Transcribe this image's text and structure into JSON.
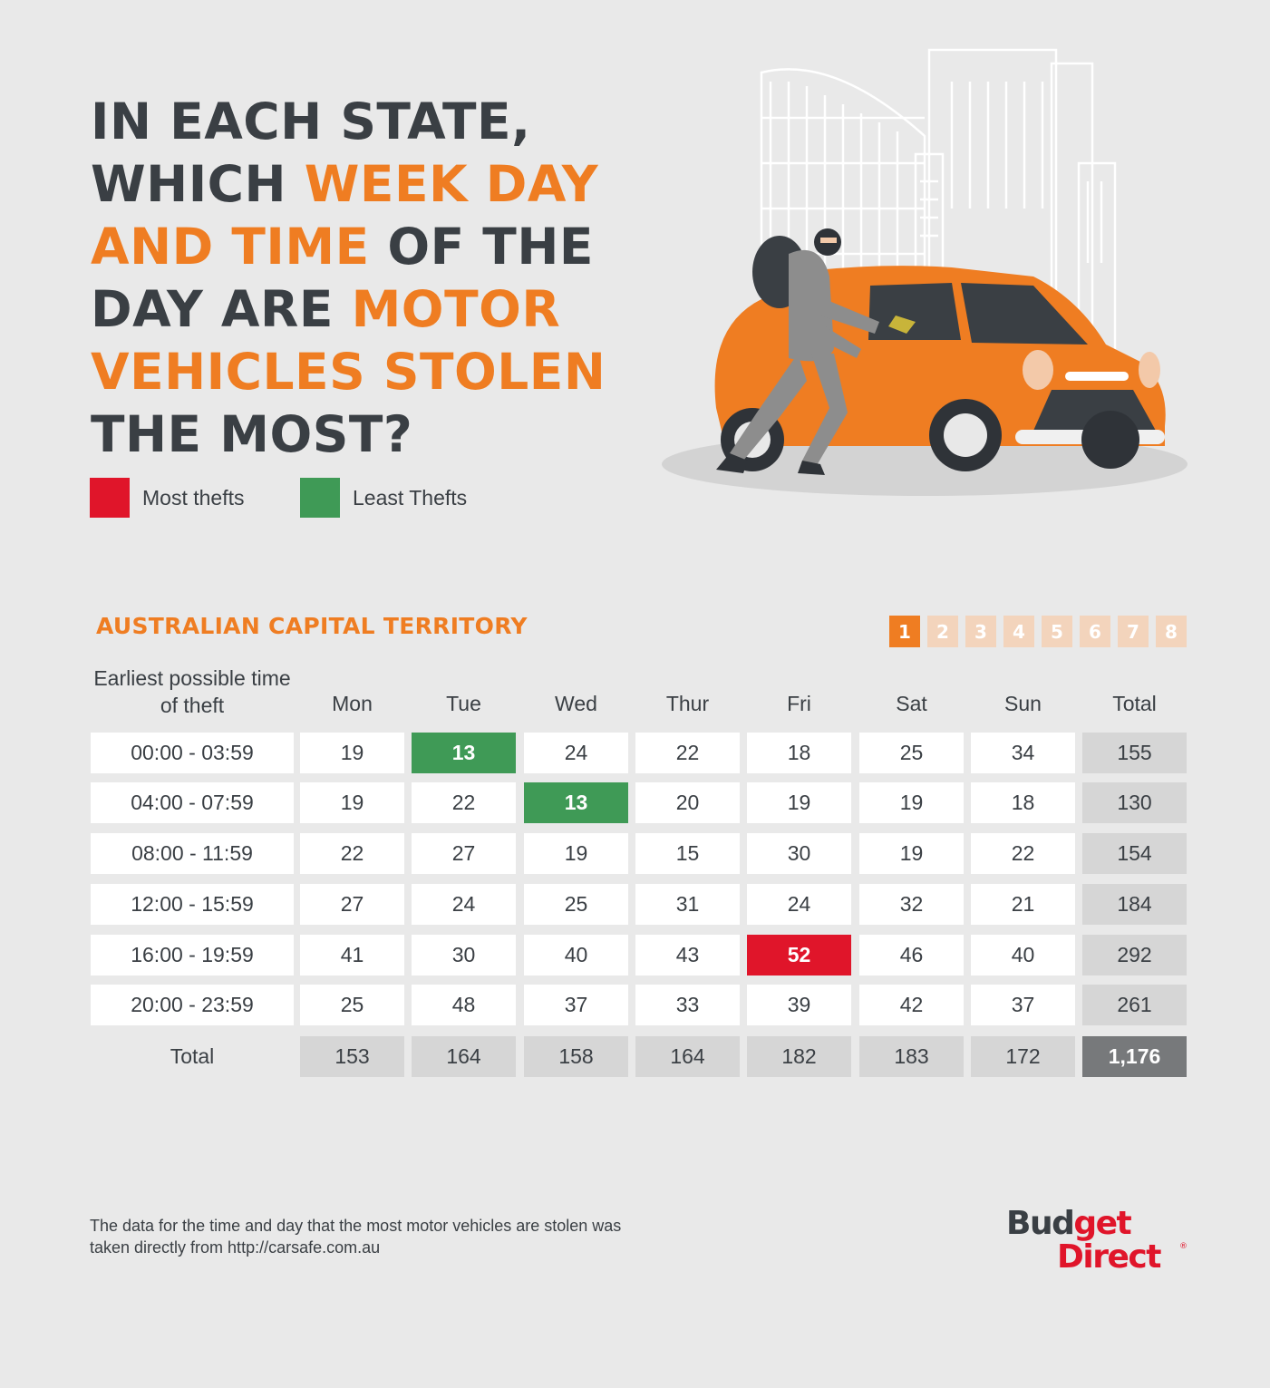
{
  "headline": {
    "parts": [
      {
        "text": "IN EACH STATE, WHICH ",
        "highlight": false
      },
      {
        "text": "WEEK DAY AND TIME",
        "highlight": true
      },
      {
        "text": " OF THE DAY ARE ",
        "highlight": false
      },
      {
        "text": "MOTOR VEHICLES STOLEN",
        "highlight": true
      },
      {
        "text": " THE MOST?",
        "highlight": false
      }
    ]
  },
  "legend": {
    "most": {
      "label": "Most thefts",
      "color": "#e0152a"
    },
    "least": {
      "label": "Least Thefts",
      "color": "#3f9a56"
    }
  },
  "region_title": "AUSTRALIAN CAPITAL TERRITORY",
  "pager": {
    "pages": [
      "1",
      "2",
      "3",
      "4",
      "5",
      "6",
      "7",
      "8"
    ],
    "active": "1"
  },
  "colors": {
    "accent": "#ef7d22",
    "text": "#3a3f44",
    "most": "#e0152a",
    "least": "#3f9a56",
    "total_cell": "#d6d6d6",
    "grand_total_cell": "#77797b"
  },
  "chart_data": {
    "type": "table",
    "row_header_label": "Earliest possible time of theft",
    "columns": [
      "Mon",
      "Tue",
      "Wed",
      "Thur",
      "Fri",
      "Sat",
      "Sun"
    ],
    "total_label": "Total",
    "rows": [
      {
        "time": "00:00 - 03:59",
        "values": [
          19,
          13,
          24,
          22,
          18,
          25,
          34
        ],
        "total": "155"
      },
      {
        "time": "04:00 - 07:59",
        "values": [
          19,
          22,
          13,
          20,
          19,
          19,
          18
        ],
        "total": "130"
      },
      {
        "time": "08:00 - 11:59",
        "values": [
          22,
          27,
          19,
          15,
          30,
          19,
          22
        ],
        "total": "154"
      },
      {
        "time": "12:00 - 15:59",
        "values": [
          27,
          24,
          25,
          31,
          24,
          32,
          21
        ],
        "total": "184"
      },
      {
        "time": "16:00 - 19:59",
        "values": [
          41,
          30,
          40,
          43,
          52,
          46,
          40
        ],
        "total": "292"
      },
      {
        "time": "20:00 - 23:59",
        "values": [
          25,
          48,
          37,
          33,
          39,
          42,
          37
        ],
        "total": "261"
      }
    ],
    "column_totals": [
      "153",
      "164",
      "158",
      "164",
      "182",
      "183",
      "172"
    ],
    "grand_total": "1,176",
    "highlights": {
      "most": [
        {
          "row": 4,
          "col": 4
        }
      ],
      "least": [
        {
          "row": 0,
          "col": 1
        },
        {
          "row": 1,
          "col": 2
        }
      ]
    }
  },
  "footnote": "The data for the time and day that the most motor vehicles are stolen was taken directly from http://carsafe.com.au",
  "logo": {
    "line1_a": "Bud",
    "line1_b": "get",
    "line2": "Direct",
    "mark": "®"
  }
}
